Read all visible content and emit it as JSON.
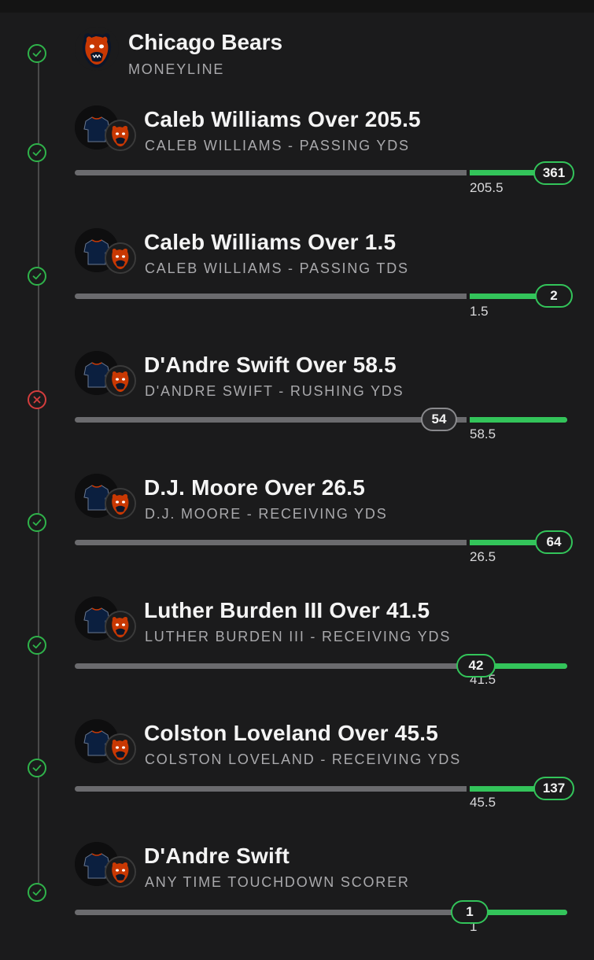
{
  "header": {
    "team": "Chicago Bears",
    "market": "MONEYLINE",
    "status": "won"
  },
  "colors": {
    "background": "#1b1b1c",
    "win": "#2fb34a",
    "loss": "#d43d3d",
    "bar_green": "#33c45a",
    "bar_grey": "#6b6b6e"
  },
  "legs": [
    {
      "title": "Caleb Williams Over 205.5",
      "subtitle": "CALEB WILLIAMS - PASSING YDS",
      "status": "won",
      "actual": "361",
      "line": "205.5"
    },
    {
      "title": "Caleb Williams Over 1.5",
      "subtitle": "CALEB WILLIAMS - PASSING TDS",
      "status": "won",
      "actual": "2",
      "line": "1.5"
    },
    {
      "title": "D'Andre Swift Over 58.5",
      "subtitle": "D'ANDRE SWIFT - RUSHING YDS",
      "status": "lost",
      "actual": "54",
      "line": "58.5"
    },
    {
      "title": "D.J. Moore Over 26.5",
      "subtitle": "D.J. MOORE - RECEIVING YDS",
      "status": "won",
      "actual": "64",
      "line": "26.5"
    },
    {
      "title": "Luther Burden III Over 41.5",
      "subtitle": "LUTHER BURDEN III - RECEIVING YDS",
      "status": "won",
      "actual": "42",
      "line": "41.5"
    },
    {
      "title": "Colston Loveland Over 45.5",
      "subtitle": "COLSTON LOVELAND - RECEIVING YDS",
      "status": "won",
      "actual": "137",
      "line": "45.5"
    },
    {
      "title": "D'Andre Swift",
      "subtitle": "ANY TIME TOUCHDOWN SCORER",
      "status": "won",
      "actual": "1",
      "line": "1"
    }
  ]
}
